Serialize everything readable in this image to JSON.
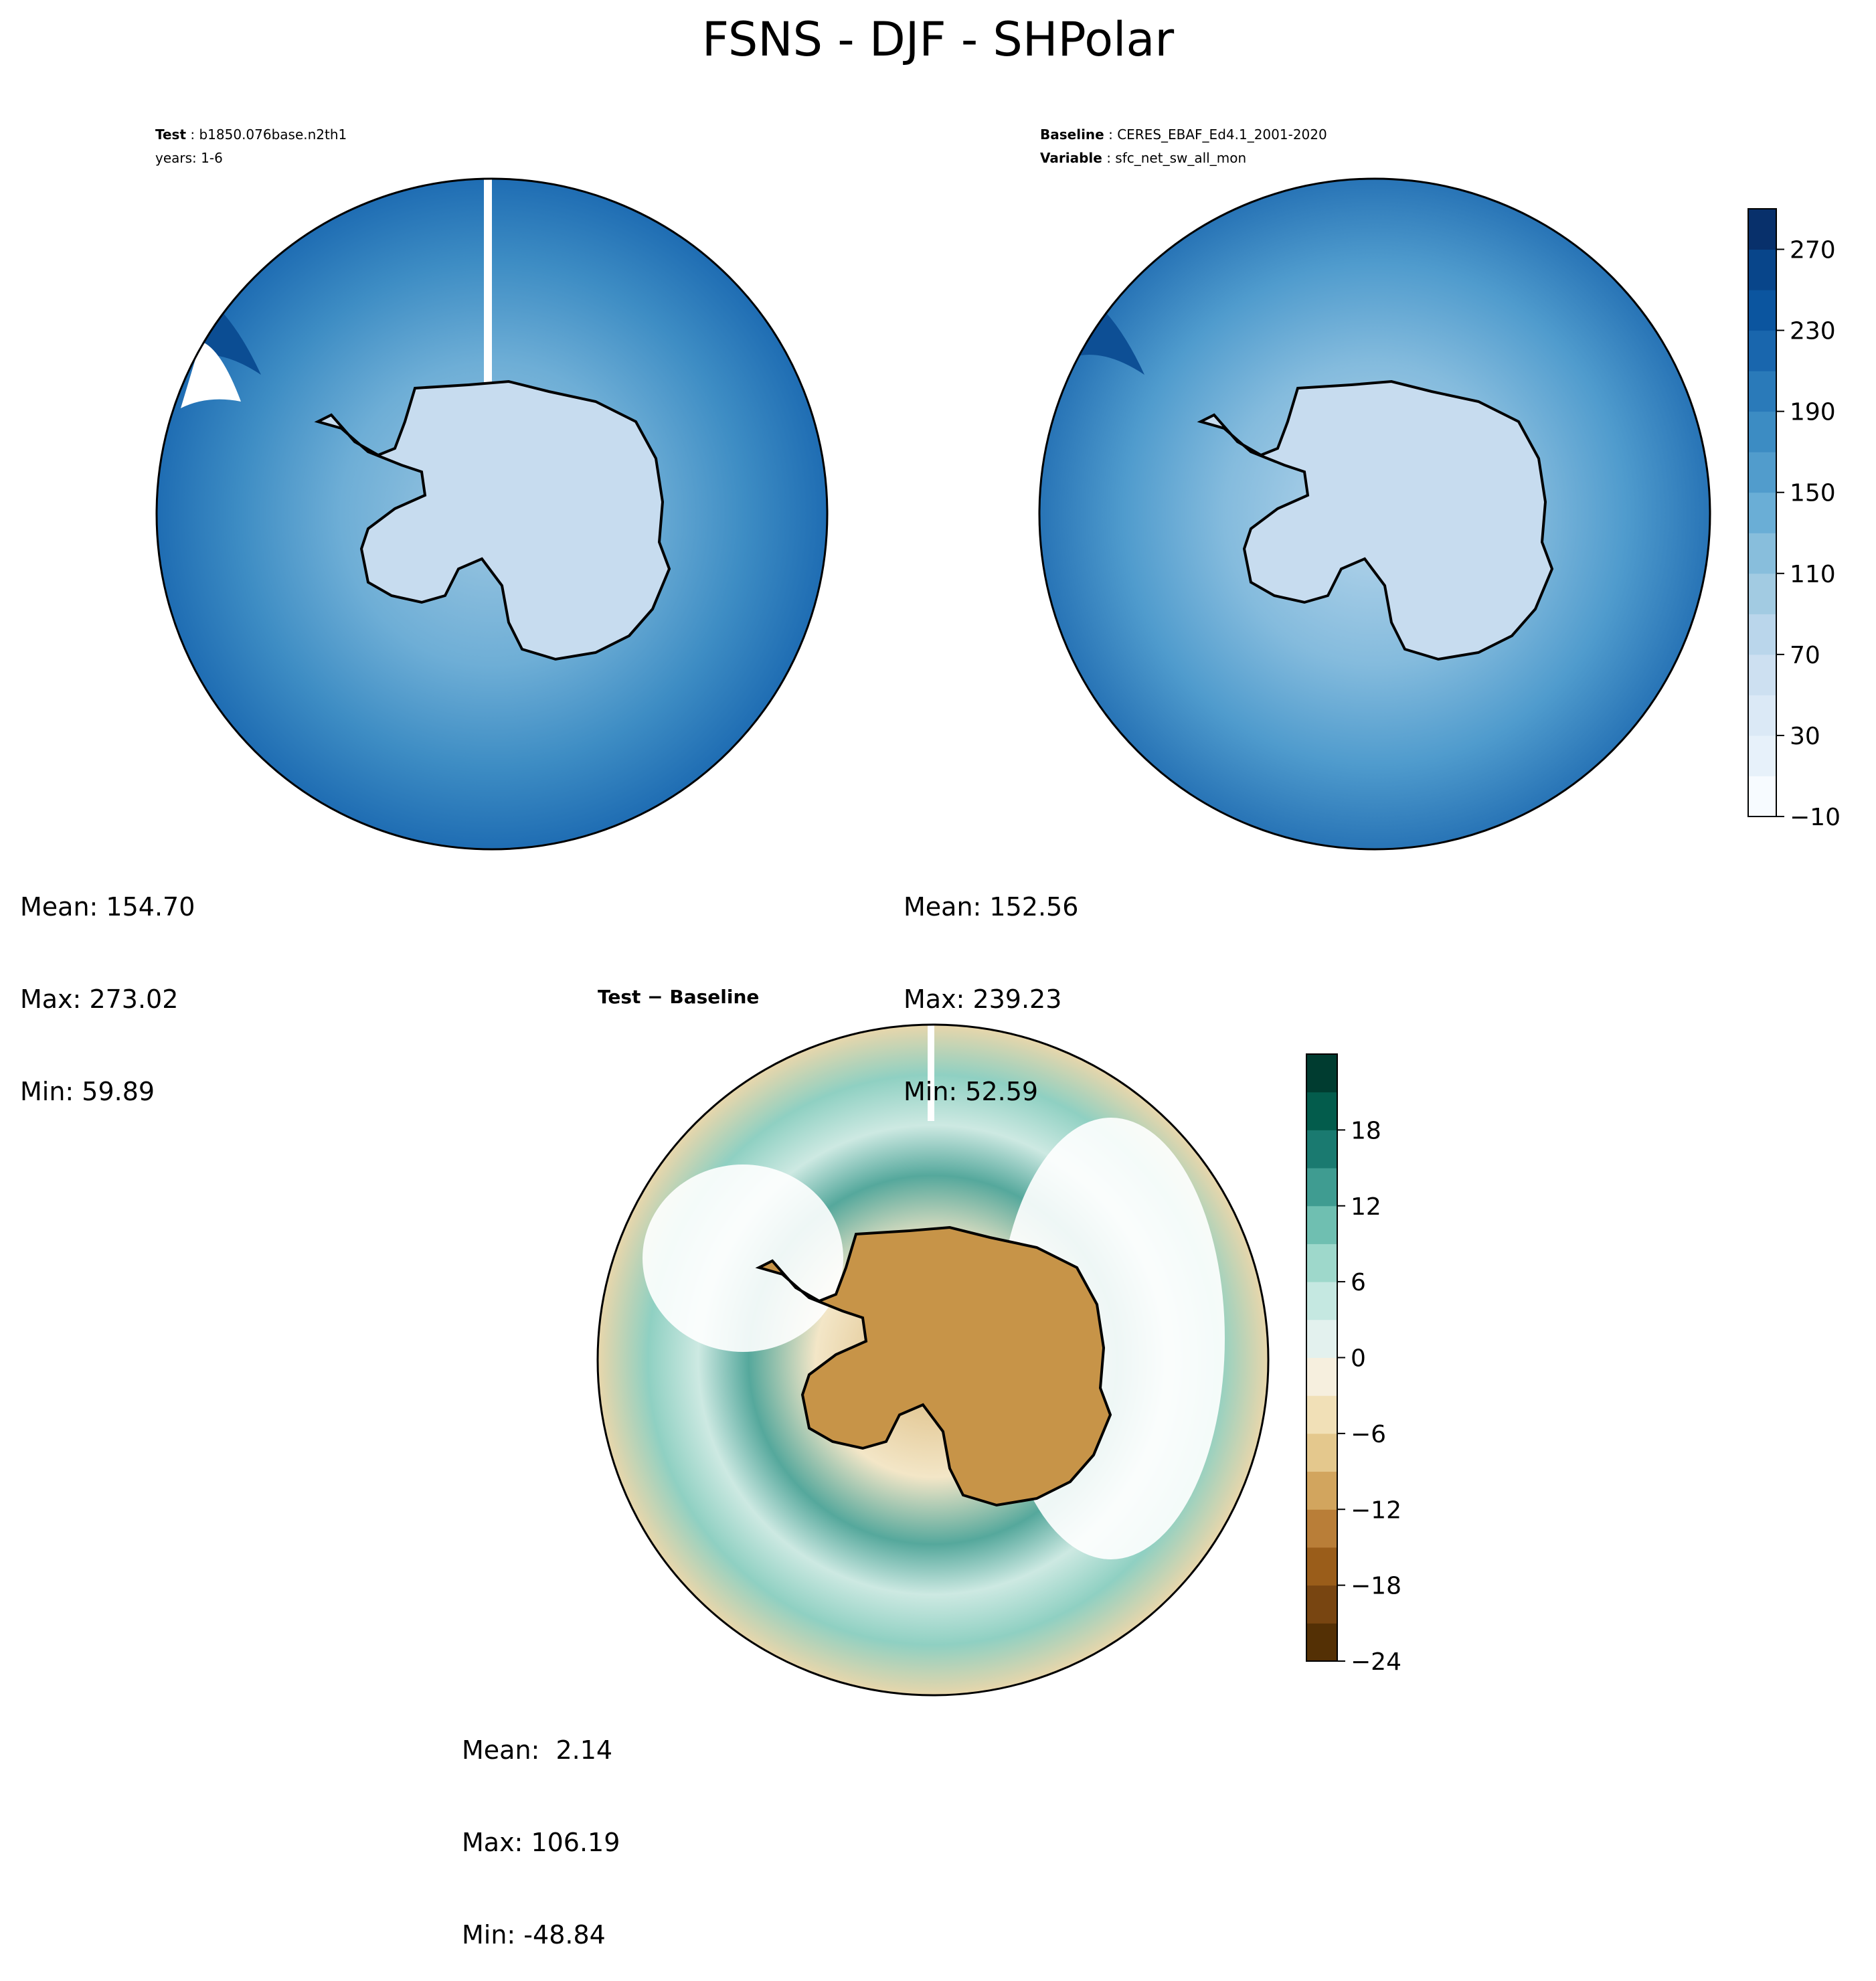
{
  "figure": {
    "title": "FSNS - DJF - SHPolar"
  },
  "panels": {
    "test": {
      "label_key": "Test",
      "label_value": "b1850.076base.n2th1",
      "years": "years: 1-6",
      "mean": "Mean: 154.70",
      "max": "Max: 273.02",
      "min": "Min: 59.89"
    },
    "baseline": {
      "label_key": "Baseline",
      "label_value": "CERES_EBAF_Ed4.1_2001-2020",
      "var_key": "Variable",
      "var_value": "sfc_net_sw_all_mon",
      "mean": "Mean: 152.56",
      "max": "Max: 239.23",
      "min": "Min: 52.59"
    },
    "diff": {
      "label": "Test − Baseline",
      "mean": "Mean:  2.14",
      "max": "Max: 106.19",
      "min": "Min: -48.84"
    }
  },
  "chart_data": [
    {
      "type": "heatmap",
      "name": "Test",
      "projection": "south-polar-stereographic",
      "colormap": "Blues",
      "levels": [
        -10,
        10,
        30,
        50,
        70,
        90,
        110,
        130,
        150,
        170,
        190,
        210,
        230,
        250,
        270,
        290
      ],
      "stats": {
        "mean": 154.7,
        "max": 273.02,
        "min": 59.89
      }
    },
    {
      "type": "heatmap",
      "name": "Baseline",
      "projection": "south-polar-stereographic",
      "colormap": "Blues",
      "levels": [
        -10,
        10,
        30,
        50,
        70,
        90,
        110,
        130,
        150,
        170,
        190,
        210,
        230,
        250,
        270,
        290
      ],
      "stats": {
        "mean": 152.56,
        "max": 239.23,
        "min": 52.59
      },
      "colorbar": {
        "ticks": [
          "270",
          "230",
          "190",
          "150",
          "110",
          "70",
          "30",
          "−10"
        ],
        "colors": [
          "#f7fbff",
          "#e7f1fa",
          "#dbe9f6",
          "#cde0f1",
          "#bad6eb",
          "#a2cbe2",
          "#88bedc",
          "#6aaed6",
          "#519ccc",
          "#3c8cc3",
          "#2a7ab9",
          "#1966ad",
          "#0b559f",
          "#08458a",
          "#08306b"
        ]
      }
    },
    {
      "type": "heatmap",
      "name": "Test − Baseline",
      "projection": "south-polar-stereographic",
      "colormap": "BrBG",
      "levels": [
        -24,
        -21,
        -18,
        -15,
        -12,
        -9,
        -6,
        -3,
        0,
        3,
        6,
        9,
        12,
        15,
        18,
        21
      ],
      "stats": {
        "mean": 2.14,
        "max": 106.19,
        "min": -48.84
      },
      "colorbar": {
        "ticks": [
          "18",
          "12",
          "6",
          "0",
          "−6",
          "−12",
          "−18",
          "−24"
        ],
        "colors": [
          "#543005",
          "#784511",
          "#9a5d1a",
          "#b97e38",
          "#d2a55e",
          "#e4c88d",
          "#f1e0b7",
          "#f6efde",
          "#e3f1ee",
          "#c5e8e1",
          "#9ed8cb",
          "#6fbfb1",
          "#3f9c91",
          "#1a7a70",
          "#035c4c",
          "#003c30"
        ]
      }
    }
  ]
}
